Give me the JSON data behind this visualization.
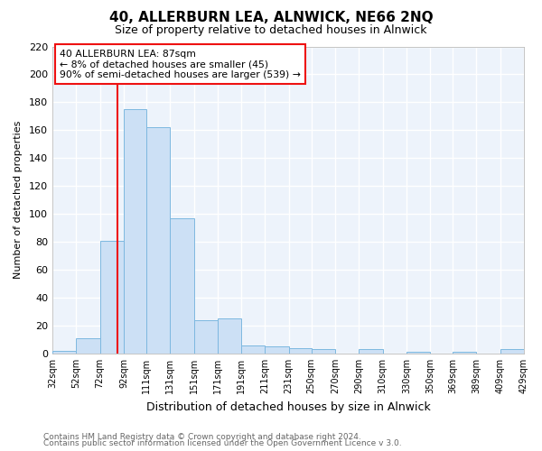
{
  "title": "40, ALLERBURN LEA, ALNWICK, NE66 2NQ",
  "subtitle": "Size of property relative to detached houses in Alnwick",
  "xlabel": "Distribution of detached houses by size in Alnwick",
  "ylabel": "Number of detached properties",
  "bar_color": "#cce0f5",
  "bar_edge_color": "#7db8e0",
  "background_color": "#ffffff",
  "plot_bg_color": "#edf3fb",
  "grid_color": "#ffffff",
  "bins": [
    "32sqm",
    "52sqm",
    "72sqm",
    "92sqm",
    "111sqm",
    "131sqm",
    "151sqm",
    "171sqm",
    "191sqm",
    "211sqm",
    "231sqm",
    "250sqm",
    "270sqm",
    "290sqm",
    "310sqm",
    "330sqm",
    "350sqm",
    "369sqm",
    "389sqm",
    "409sqm",
    "429sqm"
  ],
  "bin_edges": [
    32,
    52,
    72,
    92,
    111,
    131,
    151,
    171,
    191,
    211,
    231,
    250,
    270,
    290,
    310,
    330,
    350,
    369,
    389,
    409,
    429
  ],
  "values": [
    2,
    11,
    81,
    175,
    162,
    97,
    24,
    25,
    6,
    5,
    4,
    3,
    0,
    3,
    0,
    1,
    0,
    1,
    0,
    3
  ],
  "vline_x": 87,
  "vline_color": "#ee1111",
  "annotation_title": "40 ALLERBURN LEA: 87sqm",
  "annotation_line1": "← 8% of detached houses are smaller (45)",
  "annotation_line2": "90% of semi-detached houses are larger (539) →",
  "annotation_box_color": "#ffffff",
  "annotation_box_edge_color": "#ee1111",
  "ylim": [
    0,
    220
  ],
  "yticks": [
    0,
    20,
    40,
    60,
    80,
    100,
    120,
    140,
    160,
    180,
    200,
    220
  ],
  "footer1": "Contains HM Land Registry data © Crown copyright and database right 2024.",
  "footer2": "Contains public sector information licensed under the Open Government Licence v 3.0."
}
